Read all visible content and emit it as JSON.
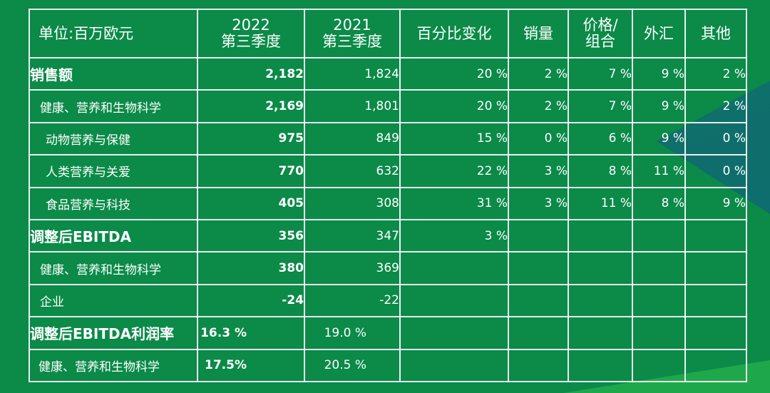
{
  "header": {
    "unit": "单位:百万欧元",
    "y2022_year": "2022",
    "y2022_q": "第三季度",
    "y2021_year": "2021",
    "y2021_q": "第三季度",
    "pct_change": "百分比变化",
    "volume": "销量",
    "price_a": "价格/",
    "price_b": "组合",
    "fx": "外汇",
    "other": "其他"
  },
  "rows": [
    {
      "label": "销售额",
      "y2022": "2,182",
      "y2021": "1,824",
      "pct": "20 %",
      "vol": "2 %",
      "price": "7 %",
      "fx": "9 %",
      "other": "2 %"
    },
    {
      "label": "健康、营养和生物科学",
      "y2022": "2,169",
      "y2021": "1,801",
      "pct": "20 %",
      "vol": "2 %",
      "price": "7 %",
      "fx": "9 %",
      "other": "2 %"
    },
    {
      "label": "动物营养与保健",
      "y2022": "975",
      "y2021": "849",
      "pct": "15 %",
      "vol": "0 %",
      "price": "6 %",
      "fx": "9 %",
      "other": "0 %"
    },
    {
      "label": "人类营养与关爱",
      "y2022": "770",
      "y2021": "632",
      "pct": "22 %",
      "vol": "3 %",
      "price": "8 %",
      "fx": "11 %",
      "other": "0 %"
    },
    {
      "label": "食品营养与科技",
      "y2022": "405",
      "y2021": "308",
      "pct": "31 %",
      "vol": "3 %",
      "price": "11 %",
      "fx": "8 %",
      "other": "9 %"
    },
    {
      "label": "调整后EBITDA",
      "y2022": "356",
      "y2021": "347",
      "pct": "3 %",
      "vol": "",
      "price": "",
      "fx": "",
      "other": ""
    },
    {
      "label": "健康、营养和生物科学",
      "y2022": "380",
      "y2021": "369",
      "pct": "",
      "vol": "",
      "price": "",
      "fx": "",
      "other": ""
    },
    {
      "label": "企业",
      "y2022": "-24",
      "y2021": "-22",
      "pct": "",
      "vol": "",
      "price": "",
      "fx": "",
      "other": ""
    },
    {
      "label": "调整后EBITDA利润率",
      "y2022": "16.3 %",
      "y2021": "19.0 %",
      "pct": "",
      "vol": "",
      "price": "",
      "fx": "",
      "other": ""
    },
    {
      "label": "健康、营养和生物科学",
      "y2022": "17.5%",
      "y2021": "20.5 %",
      "pct": "",
      "vol": "",
      "price": "",
      "fx": "",
      "other": ""
    }
  ]
}
